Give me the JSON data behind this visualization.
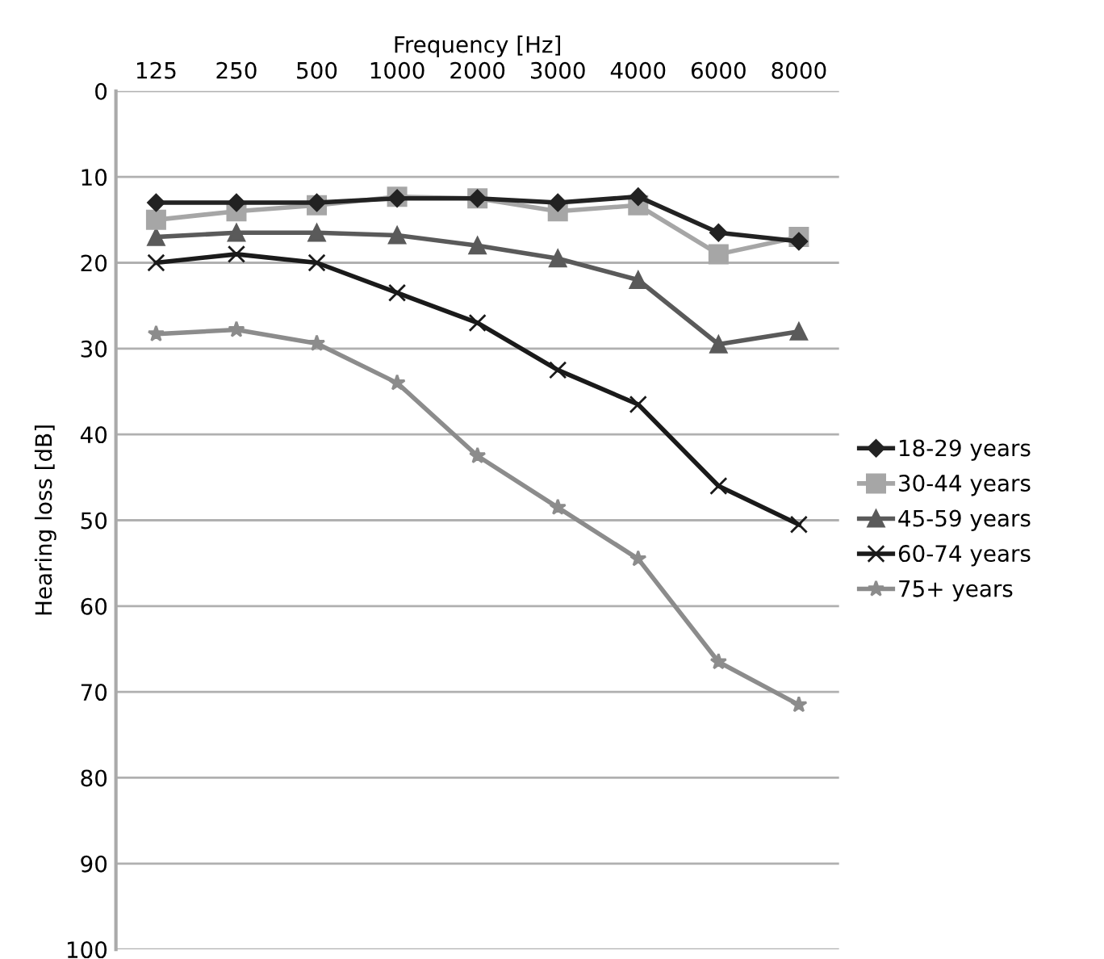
{
  "chart_data": {
    "type": "line",
    "xlabel": "Frequency [Hz]",
    "ylabel": "Hearing loss [dB]",
    "categories": [
      "125",
      "250",
      "500",
      "1000",
      "2000",
      "3000",
      "4000",
      "6000",
      "8000"
    ],
    "ylim": [
      100,
      0
    ],
    "yticks": [
      0,
      10,
      20,
      30,
      40,
      50,
      60,
      70,
      80,
      90,
      100
    ],
    "grid": "y",
    "legend": "right",
    "series": [
      {
        "name": "18-29 years",
        "color": "#222222",
        "marker": "diamond",
        "values": [
          13,
          13,
          13,
          12.5,
          12.5,
          13,
          12.3,
          16.5,
          17.5
        ]
      },
      {
        "name": "30-44 years",
        "color": "#a6a6a6",
        "marker": "square",
        "values": [
          15,
          14,
          13.3,
          12.3,
          12.5,
          14,
          13.3,
          19,
          17
        ]
      },
      {
        "name": "45-59 years",
        "color": "#5a5a5a",
        "marker": "triangle",
        "values": [
          17,
          16.5,
          16.5,
          16.8,
          18,
          19.5,
          22,
          29.5,
          28
        ]
      },
      {
        "name": "60-74 years",
        "color": "#1a1a1a",
        "marker": "cross",
        "values": [
          20,
          19,
          20,
          23.5,
          27,
          32.5,
          36.5,
          46,
          50.5
        ]
      },
      {
        "name": "75+ years",
        "color": "#8c8c8c",
        "marker": "star",
        "values": [
          28.3,
          27.8,
          29.4,
          34,
          42.5,
          48.5,
          54.5,
          66.5,
          71.5
        ]
      }
    ]
  }
}
